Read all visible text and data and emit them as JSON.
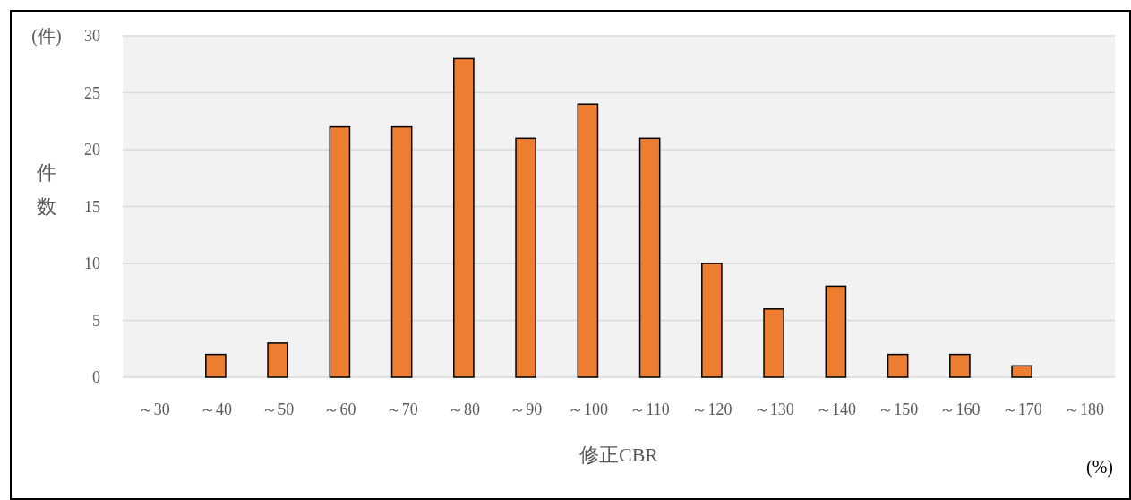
{
  "chart_data": {
    "type": "bar",
    "xlabel": "修正CBR",
    "ylabel": "件数",
    "annotations": [
      "(件)",
      "(%)"
    ],
    "categories": [
      "～30",
      "～40",
      "～50",
      "～60",
      "～70",
      "～80",
      "～90",
      "～100",
      "～110",
      "～120",
      "～130",
      "～140",
      "～150",
      "～160",
      "～170",
      "～180"
    ],
    "values": [
      0,
      2,
      3,
      22,
      22,
      28,
      21,
      24,
      21,
      10,
      6,
      8,
      2,
      2,
      1,
      0
    ],
    "color": "#ed7d31",
    "ylim": [
      0,
      30
    ],
    "yticks": [
      0,
      5,
      10,
      15,
      20,
      25,
      30
    ],
    "grid": "y"
  }
}
